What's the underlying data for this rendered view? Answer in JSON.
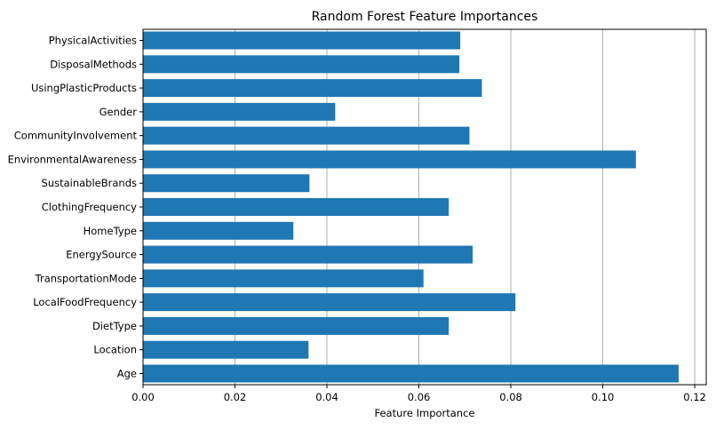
{
  "chart_data": {
    "type": "bar",
    "orientation": "horizontal",
    "title": "Random Forest Feature Importances",
    "xlabel": "Feature Importance",
    "ylabel": "",
    "categories": [
      "Age",
      "Location",
      "DietType",
      "LocalFoodFrequency",
      "TransportationMode",
      "EnergySource",
      "HomeType",
      "ClothingFrequency",
      "SustainableBrands",
      "EnvironmentalAwareness",
      "CommunityInvolvement",
      "Gender",
      "UsingPlasticProducts",
      "DisposalMethods",
      "PhysicalActivities"
    ],
    "values": [
      0.1165,
      0.036,
      0.0665,
      0.081,
      0.061,
      0.0717,
      0.0327,
      0.0665,
      0.0362,
      0.1072,
      0.071,
      0.0418,
      0.0737,
      0.0688,
      0.069
    ],
    "xlim": [
      0,
      0.1225
    ],
    "xticks": [
      "0.00",
      "0.02",
      "0.04",
      "0.06",
      "0.08",
      "0.10",
      "0.12"
    ],
    "grid": "x",
    "bar_color": "#1f77b4"
  }
}
